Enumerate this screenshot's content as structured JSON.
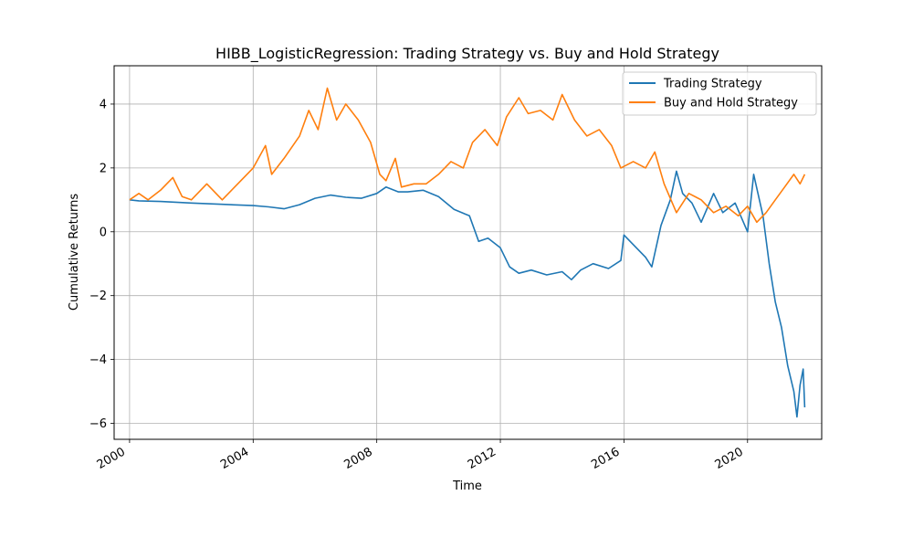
{
  "chart_data": {
    "type": "line",
    "title": "HIBB_LogisticRegression: Trading Strategy vs. Buy and Hold Strategy",
    "xlabel": "Time",
    "ylabel": "Cumulative Returns",
    "xlim": [
      1999.5,
      2022.4
    ],
    "ylim": [
      -6.5,
      5.2
    ],
    "x_ticks": [
      {
        "value": 2000,
        "label": "2000"
      },
      {
        "value": 2004,
        "label": "2004"
      },
      {
        "value": 2008,
        "label": "2008"
      },
      {
        "value": 2012,
        "label": "2012"
      },
      {
        "value": 2016,
        "label": "2016"
      },
      {
        "value": 2020,
        "label": "2020"
      }
    ],
    "y_ticks": [
      {
        "value": 4,
        "label": "4"
      },
      {
        "value": 2,
        "label": "2"
      },
      {
        "value": 0,
        "label": "0"
      },
      {
        "value": -2,
        "label": "−2"
      },
      {
        "value": -4,
        "label": "−4"
      },
      {
        "value": -6,
        "label": "−6"
      }
    ],
    "grid": true,
    "legend_position": "top-right",
    "series": [
      {
        "name": "Trading Strategy",
        "color": "#1f77b4",
        "points": [
          [
            2000.0,
            1.0
          ],
          [
            2000.3,
            0.97
          ],
          [
            2001.0,
            0.95
          ],
          [
            2002.0,
            0.9
          ],
          [
            2003.0,
            0.86
          ],
          [
            2004.0,
            0.82
          ],
          [
            2004.5,
            0.78
          ],
          [
            2005.0,
            0.72
          ],
          [
            2005.5,
            0.85
          ],
          [
            2006.0,
            1.05
          ],
          [
            2006.5,
            1.15
          ],
          [
            2007.0,
            1.08
          ],
          [
            2007.5,
            1.05
          ],
          [
            2008.0,
            1.2
          ],
          [
            2008.3,
            1.4
          ],
          [
            2008.7,
            1.25
          ],
          [
            2009.0,
            1.25
          ],
          [
            2009.5,
            1.3
          ],
          [
            2010.0,
            1.1
          ],
          [
            2010.5,
            0.7
          ],
          [
            2011.0,
            0.5
          ],
          [
            2011.3,
            -0.3
          ],
          [
            2011.6,
            -0.2
          ],
          [
            2012.0,
            -0.5
          ],
          [
            2012.3,
            -1.1
          ],
          [
            2012.6,
            -1.3
          ],
          [
            2013.0,
            -1.2
          ],
          [
            2013.5,
            -1.35
          ],
          [
            2014.0,
            -1.25
          ],
          [
            2014.3,
            -1.5
          ],
          [
            2014.6,
            -1.2
          ],
          [
            2015.0,
            -1.0
          ],
          [
            2015.5,
            -1.15
          ],
          [
            2015.9,
            -0.9
          ],
          [
            2016.0,
            -0.1
          ],
          [
            2016.3,
            -0.4
          ],
          [
            2016.7,
            -0.8
          ],
          [
            2016.9,
            -1.1
          ],
          [
            2017.2,
            0.2
          ],
          [
            2017.5,
            1.0
          ],
          [
            2017.7,
            1.9
          ],
          [
            2017.9,
            1.2
          ],
          [
            2018.2,
            0.9
          ],
          [
            2018.5,
            0.3
          ],
          [
            2018.9,
            1.2
          ],
          [
            2019.2,
            0.6
          ],
          [
            2019.6,
            0.9
          ],
          [
            2020.0,
            0.0
          ],
          [
            2020.2,
            1.8
          ],
          [
            2020.5,
            0.5
          ],
          [
            2020.7,
            -1.0
          ],
          [
            2020.9,
            -2.2
          ],
          [
            2021.1,
            -3.0
          ],
          [
            2021.3,
            -4.2
          ],
          [
            2021.5,
            -5.0
          ],
          [
            2021.6,
            -5.8
          ],
          [
            2021.7,
            -4.8
          ],
          [
            2021.8,
            -4.3
          ],
          [
            2021.85,
            -5.5
          ]
        ]
      },
      {
        "name": "Buy and Hold Strategy",
        "color": "#ff7f0e",
        "points": [
          [
            2000.0,
            1.0
          ],
          [
            2000.3,
            1.2
          ],
          [
            2000.6,
            1.0
          ],
          [
            2001.0,
            1.3
          ],
          [
            2001.4,
            1.7
          ],
          [
            2001.7,
            1.1
          ],
          [
            2002.0,
            1.0
          ],
          [
            2002.5,
            1.5
          ],
          [
            2003.0,
            1.0
          ],
          [
            2003.5,
            1.5
          ],
          [
            2004.0,
            2.0
          ],
          [
            2004.4,
            2.7
          ],
          [
            2004.6,
            1.8
          ],
          [
            2005.0,
            2.3
          ],
          [
            2005.5,
            3.0
          ],
          [
            2005.8,
            3.8
          ],
          [
            2006.1,
            3.2
          ],
          [
            2006.4,
            4.5
          ],
          [
            2006.7,
            3.5
          ],
          [
            2007.0,
            4.0
          ],
          [
            2007.4,
            3.5
          ],
          [
            2007.8,
            2.8
          ],
          [
            2008.1,
            1.8
          ],
          [
            2008.3,
            1.6
          ],
          [
            2008.6,
            2.3
          ],
          [
            2008.8,
            1.4
          ],
          [
            2009.2,
            1.5
          ],
          [
            2009.6,
            1.5
          ],
          [
            2010.0,
            1.8
          ],
          [
            2010.4,
            2.2
          ],
          [
            2010.8,
            2.0
          ],
          [
            2011.1,
            2.8
          ],
          [
            2011.5,
            3.2
          ],
          [
            2011.9,
            2.7
          ],
          [
            2012.2,
            3.6
          ],
          [
            2012.6,
            4.2
          ],
          [
            2012.9,
            3.7
          ],
          [
            2013.3,
            3.8
          ],
          [
            2013.7,
            3.5
          ],
          [
            2014.0,
            4.3
          ],
          [
            2014.4,
            3.5
          ],
          [
            2014.8,
            3.0
          ],
          [
            2015.2,
            3.2
          ],
          [
            2015.6,
            2.7
          ],
          [
            2015.9,
            2.0
          ],
          [
            2016.3,
            2.2
          ],
          [
            2016.7,
            2.0
          ],
          [
            2017.0,
            2.5
          ],
          [
            2017.3,
            1.5
          ],
          [
            2017.7,
            0.6
          ],
          [
            2018.1,
            1.2
          ],
          [
            2018.5,
            1.0
          ],
          [
            2018.9,
            0.6
          ],
          [
            2019.3,
            0.8
          ],
          [
            2019.7,
            0.5
          ],
          [
            2020.0,
            0.8
          ],
          [
            2020.3,
            0.3
          ],
          [
            2020.6,
            0.6
          ],
          [
            2020.9,
            1.0
          ],
          [
            2021.2,
            1.4
          ],
          [
            2021.5,
            1.8
          ],
          [
            2021.7,
            1.5
          ],
          [
            2021.85,
            1.8
          ]
        ]
      }
    ]
  }
}
